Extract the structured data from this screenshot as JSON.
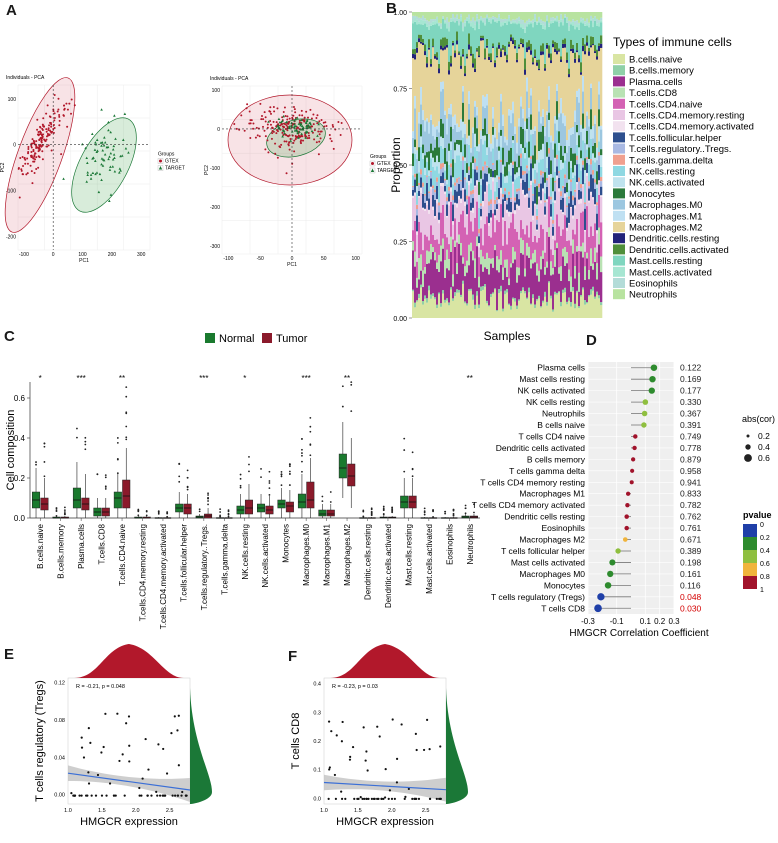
{
  "panel_labels": {
    "a": "A",
    "b": "B",
    "c": "C",
    "d": "D",
    "e": "E",
    "f": "F"
  },
  "colors": {
    "gtex": "#b2182b",
    "target": "#1b7837",
    "normal": "#1a7a2e",
    "tumor": "#8b1a2b",
    "loess": "#3b6fd6",
    "band": "#bdbdbd",
    "pvalue_scale": [
      "#1f3fa8",
      "#2e8b2e",
      "#8fbf3f",
      "#f0b43c",
      "#a1132b"
    ]
  },
  "chart_data": [
    {
      "id": "pca1",
      "type": "scatter",
      "title": "Individuals - PCA",
      "xlabel": "PC1",
      "ylabel": "PC2",
      "xticks": [
        "-100",
        "0",
        "100",
        "200",
        "300"
      ],
      "yticks": [
        "100",
        "0",
        "-100",
        "-200"
      ],
      "xlim": [
        -120,
        330
      ],
      "ylim": [
        -230,
        130
      ],
      "legend_title": "Groups",
      "legend": [
        "GTEX",
        "TARGET"
      ],
      "groups": [
        {
          "name": "GTEX",
          "center": [
            -40,
            10
          ],
          "spread": [
            18,
            60
          ],
          "n": 180,
          "tilt": -0.75
        },
        {
          "name": "TARGET",
          "center": [
            180,
            -20
          ],
          "spread": [
            35,
            35
          ],
          "n": 70,
          "tilt": -0.55
        }
      ]
    },
    {
      "id": "pca2",
      "type": "scatter",
      "title": "Individuals - PCA",
      "xlabel": "PC1",
      "ylabel": "PC2",
      "xticks": [
        "-100",
        "-50",
        "0",
        "50",
        "100"
      ],
      "yticks": [
        "100",
        "0",
        "-100",
        "-200",
        "-300"
      ],
      "xlim": [
        -110,
        110
      ],
      "ylim": [
        -320,
        110
      ],
      "legend_title": "Groups",
      "legend": [
        "GTEX",
        "TARGET"
      ],
      "groups": [
        {
          "name": "GTEX",
          "center": [
            0,
            0
          ],
          "spread": [
            38,
            28
          ],
          "n": 220,
          "tilt": 0
        },
        {
          "name": "TARGET",
          "center": [
            5,
            5
          ],
          "spread": [
            18,
            15
          ],
          "n": 70,
          "tilt": -0.3
        }
      ]
    },
    {
      "id": "stacked",
      "type": "area",
      "xlabel": "Samples",
      "ylabel": "Proportion",
      "yticks": [
        "0.00",
        "0.25",
        "0.50",
        "0.75",
        "1.00"
      ],
      "ylim": [
        0,
        1
      ],
      "legend_title": "Types of immune cells",
      "series": [
        {
          "name": "B.cells.naive",
          "color": "#d9e5a3",
          "value": 0.06
        },
        {
          "name": "B.cells.memory",
          "color": "#8fd0a8",
          "value": 0.01
        },
        {
          "name": "Plasma.cells",
          "color": "#9b2f8f",
          "value": 0.1
        },
        {
          "name": "T.cells.CD8",
          "color": "#b9e2b3",
          "value": 0.04
        },
        {
          "name": "T.cells.CD4.naive",
          "color": "#d462b4",
          "value": 0.09
        },
        {
          "name": "T.cells.CD4.memory.resting",
          "color": "#e9c6e4",
          "value": 0.08
        },
        {
          "name": "T.cells.CD4.memory.activated",
          "color": "#f2e2ef",
          "value": 0.01
        },
        {
          "name": "T.cells.follicular.helper",
          "color": "#2e4f8e",
          "value": 0.04
        },
        {
          "name": "T.cells.regulatory..Tregs.",
          "color": "#a9b9e3",
          "value": 0.02
        },
        {
          "name": "T.cells.gamma.delta",
          "color": "#f0a08f",
          "value": 0.01
        },
        {
          "name": "NK.cells.resting",
          "color": "#8fd8e2",
          "value": 0.05
        },
        {
          "name": "NK.cells.activated",
          "color": "#bfe3ee",
          "value": 0.03
        },
        {
          "name": "Monocytes",
          "color": "#2b7a3b",
          "value": 0.04
        },
        {
          "name": "Macrophages.M0",
          "color": "#9cc7e0",
          "value": 0.07
        },
        {
          "name": "Macrophages.M1",
          "color": "#bfe0f2",
          "value": 0.03
        },
        {
          "name": "Macrophages.M2",
          "color": "#e6d49a",
          "value": 0.2
        },
        {
          "name": "Dendritic.cells.resting",
          "color": "#23237a",
          "value": 0.01
        },
        {
          "name": "Dendritic.cells.activated",
          "color": "#4f8f3a",
          "value": 0.02
        },
        {
          "name": "Mast.cells.resting",
          "color": "#7fd6bf",
          "value": 0.08
        },
        {
          "name": "Mast.cells.activated",
          "color": "#a6e6d2",
          "value": 0.01
        },
        {
          "name": "Eosinophils",
          "color": "#b3dcd8",
          "value": 0.01
        },
        {
          "name": "Neutrophils",
          "color": "#b8e3a0",
          "value": 0.02
        }
      ]
    },
    {
      "id": "boxplot",
      "type": "box",
      "ylabel": "Cell composition",
      "yticks": [
        "0.0",
        "0.2",
        "0.4",
        "0.6"
      ],
      "ylim": [
        0,
        0.68
      ],
      "legend": [
        "Normal",
        "Tumor"
      ],
      "categories": [
        "B.cells.naive",
        "B.cells.memory",
        "Plasma.cells",
        "T.cells.CD8",
        "T.cells.CD4.naive",
        "T.cells.CD4.memory.resting",
        "T.cells.CD4.memory.activated",
        "T.cells.follicular.helper",
        "T.cells.regulatory..Tregs.",
        "T.cells.gamma.delta",
        "NK.cells.resting",
        "NK.cells.activated",
        "Monocytes",
        "Macrophages.M0",
        "Macrophages.M1",
        "Macrophages.M2",
        "Dendritic.cells.resting",
        "Dendritic.cells.activated",
        "Mast.cells.resting",
        "Mast.cells.activated",
        "Eosinophils",
        "Neutrophils"
      ],
      "significance": [
        "*",
        "",
        "***",
        "",
        "**",
        "",
        "",
        "",
        "***",
        "",
        "*",
        "",
        "",
        "***",
        "",
        "**",
        "",
        "",
        "",
        "",
        "",
        "**"
      ],
      "normal": [
        [
          0.0,
          0.05,
          0.09,
          0.13,
          0.25
        ],
        [
          0,
          0,
          0,
          0.005,
          0.01
        ],
        [
          0.0,
          0.05,
          0.09,
          0.15,
          0.28
        ],
        [
          0,
          0.01,
          0.03,
          0.05,
          0.1
        ],
        [
          0.0,
          0.05,
          0.1,
          0.13,
          0.22
        ],
        [
          0,
          0,
          0,
          0.005,
          0.01
        ],
        [
          0,
          0,
          0,
          0.002,
          0.005
        ],
        [
          0.0,
          0.03,
          0.05,
          0.07,
          0.13
        ],
        [
          0,
          0.0,
          0.005,
          0.01,
          0.02
        ],
        [
          0,
          0,
          0,
          0.002,
          0.005
        ],
        [
          0.0,
          0.02,
          0.04,
          0.06,
          0.12
        ],
        [
          0.0,
          0.03,
          0.05,
          0.07,
          0.12
        ],
        [
          0.0,
          0.05,
          0.07,
          0.09,
          0.15
        ],
        [
          0.0,
          0.05,
          0.08,
          0.12,
          0.22
        ],
        [
          0,
          0.01,
          0.02,
          0.04,
          0.07
        ],
        [
          0.1,
          0.2,
          0.25,
          0.32,
          0.48
        ],
        [
          0,
          0,
          0,
          0.002,
          0.005
        ],
        [
          0,
          0,
          0.002,
          0.005,
          0.01
        ],
        [
          0.0,
          0.05,
          0.08,
          0.11,
          0.2
        ],
        [
          0,
          0,
          0,
          0.002,
          0.005
        ],
        [
          0,
          0,
          0,
          0.002,
          0.005
        ],
        [
          0,
          0,
          0.005,
          0.01,
          0.02
        ]
      ],
      "tumor": [
        [
          0.0,
          0.04,
          0.07,
          0.1,
          0.2
        ],
        [
          0,
          0,
          0,
          0.005,
          0.01
        ],
        [
          0.0,
          0.04,
          0.07,
          0.1,
          0.22
        ],
        [
          0,
          0.01,
          0.03,
          0.05,
          0.1
        ],
        [
          0.0,
          0.05,
          0.11,
          0.19,
          0.35
        ],
        [
          0,
          0,
          0,
          0.005,
          0.01
        ],
        [
          0,
          0,
          0,
          0.002,
          0.005
        ],
        [
          0.0,
          0.02,
          0.05,
          0.07,
          0.12
        ],
        [
          0,
          0.0,
          0.01,
          0.02,
          0.05
        ],
        [
          0,
          0,
          0,
          0.002,
          0.005
        ],
        [
          0.0,
          0.02,
          0.05,
          0.09,
          0.17
        ],
        [
          0.0,
          0.02,
          0.04,
          0.06,
          0.11
        ],
        [
          0.0,
          0.03,
          0.06,
          0.08,
          0.14
        ],
        [
          0.0,
          0.05,
          0.09,
          0.18,
          0.3
        ],
        [
          0,
          0.01,
          0.02,
          0.04,
          0.07
        ],
        [
          0.05,
          0.16,
          0.21,
          0.27,
          0.4
        ],
        [
          0,
          0,
          0,
          0.002,
          0.005
        ],
        [
          0,
          0,
          0.002,
          0.005,
          0.01
        ],
        [
          0.0,
          0.05,
          0.08,
          0.11,
          0.2
        ],
        [
          0,
          0,
          0,
          0.002,
          0.005
        ],
        [
          0,
          0,
          0,
          0.002,
          0.005
        ],
        [
          0,
          0,
          0.005,
          0.01,
          0.02
        ]
      ]
    },
    {
      "id": "lollipop",
      "type": "scatter",
      "xlabel": "HMGCR Correlation Coefficient",
      "xticks": [
        "-0.3",
        "-0.1",
        "0.1",
        "0.2",
        "0.3"
      ],
      "xlim": [
        -0.3,
        0.3
      ],
      "size_legend_title": "abs(cor)",
      "size_legend": [
        "0.2",
        "0.4",
        "0.6"
      ],
      "color_legend_title": "pvalue",
      "color_legend": [
        "0",
        "0.2",
        "0.4",
        "0.6",
        "0.8",
        "1"
      ],
      "rows": [
        {
          "label": "Plasma cells",
          "cor": 0.16,
          "p": "0.122",
          "sig": false
        },
        {
          "label": "Mast cells resting",
          "cor": 0.15,
          "p": "0.169",
          "sig": false
        },
        {
          "label": "NK cells activated",
          "cor": 0.145,
          "p": "0.177",
          "sig": false
        },
        {
          "label": "NK cells resting",
          "cor": 0.1,
          "p": "0.330",
          "sig": false
        },
        {
          "label": "Neutrophils",
          "cor": 0.095,
          "p": "0.367",
          "sig": false
        },
        {
          "label": "B cells naive",
          "cor": 0.09,
          "p": "0.391",
          "sig": false
        },
        {
          "label": "T cells CD4 naive",
          "cor": 0.03,
          "p": "0.749",
          "sig": false
        },
        {
          "label": "Dendritic cells activated",
          "cor": 0.025,
          "p": "0.778",
          "sig": false
        },
        {
          "label": "B cells memory",
          "cor": 0.015,
          "p": "0.879",
          "sig": false
        },
        {
          "label": "T cells gamma delta",
          "cor": 0.008,
          "p": "0.958",
          "sig": false
        },
        {
          "label": "T cells CD4 memory resting",
          "cor": 0.005,
          "p": "0.941",
          "sig": false
        },
        {
          "label": "Macrophages M1",
          "cor": -0.02,
          "p": "0.833",
          "sig": false
        },
        {
          "label": "T cells CD4 memory activated",
          "cor": -0.025,
          "p": "0.782",
          "sig": false
        },
        {
          "label": "Dendritic cells resting",
          "cor": -0.03,
          "p": "0.762",
          "sig": false
        },
        {
          "label": "Eosinophils",
          "cor": -0.03,
          "p": "0.761",
          "sig": false
        },
        {
          "label": "Macrophages M2",
          "cor": -0.04,
          "p": "0.671",
          "sig": false
        },
        {
          "label": "T cells follicular helper",
          "cor": -0.09,
          "p": "0.389",
          "sig": false
        },
        {
          "label": "Mast cells activated",
          "cor": -0.13,
          "p": "0.198",
          "sig": false
        },
        {
          "label": "Macrophages M0",
          "cor": -0.145,
          "p": "0.161",
          "sig": false
        },
        {
          "label": "Monocytes",
          "cor": -0.16,
          "p": "0.116",
          "sig": false
        },
        {
          "label": "T cells regulatory (Tregs)",
          "cor": -0.21,
          "p": "0.048",
          "sig": true
        },
        {
          "label": "T cells CD8",
          "cor": -0.23,
          "p": "0.030",
          "sig": true
        }
      ]
    },
    {
      "id": "corE",
      "type": "scatter",
      "xlabel": "HMGCR expression",
      "ylabel": "T cells regulatory (Tregs)",
      "annotation": "R = -0.21, p = 0.048",
      "xticks": [
        "1.0",
        "1.5",
        "2.0",
        "2.5"
      ],
      "yticks": [
        "0.00",
        "0.04",
        "0.08",
        "0.12"
      ],
      "xlim": [
        1.0,
        2.8
      ],
      "ylim": [
        -0.01,
        0.125
      ],
      "fit": [
        [
          1.0,
          0.023
        ],
        [
          2.8,
          0.005
        ]
      ]
    },
    {
      "id": "corF",
      "type": "scatter",
      "xlabel": "HMGCR expression",
      "ylabel": "T cells CD8",
      "annotation": "R = -0.23, p = 0.03",
      "xticks": [
        "1.0",
        "1.5",
        "2.0",
        "2.5"
      ],
      "yticks": [
        "0.0",
        "0.1",
        "0.2",
        "0.3",
        "0.4"
      ],
      "xlim": [
        1.0,
        2.8
      ],
      "ylim": [
        -0.02,
        0.42
      ],
      "fit": [
        [
          1.0,
          0.055
        ],
        [
          2.8,
          0.03
        ]
      ]
    }
  ]
}
